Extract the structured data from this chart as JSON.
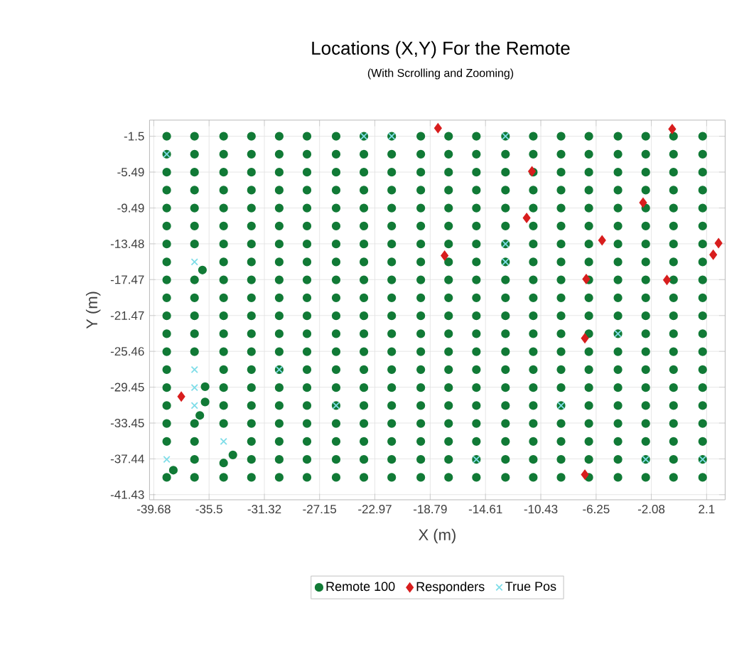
{
  "chart_data": {
    "type": "scatter",
    "title": "Locations (X,Y) For the Remote",
    "subtitle": "(With Scrolling and Zooming)",
    "xlabel": "X (m)",
    "ylabel": "Y (m)",
    "xlim": [
      -40.0,
      3.5
    ],
    "ylim": [
      -42.0,
      0.3
    ],
    "xticks": [
      -39.68,
      -35.5,
      -31.32,
      -27.15,
      -22.97,
      -18.79,
      -14.61,
      -10.43,
      -6.25,
      -2.08,
      2.1
    ],
    "yticks": [
      -1.5,
      -5.49,
      -9.49,
      -13.48,
      -17.47,
      -21.47,
      -25.46,
      -29.45,
      -33.45,
      -37.44,
      -41.43
    ],
    "grid": true,
    "legend": "bottom",
    "series": [
      {
        "name": "Remote 100",
        "color": "#117a36",
        "marker": "circle",
        "x": [
          -38.7,
          -36.6,
          -34.4,
          -32.3,
          -30.2,
          -28.1,
          -25.9,
          -23.8,
          -21.7,
          -19.5,
          -17.4,
          -15.3,
          -13.1,
          -11.0,
          -8.9,
          -6.8,
          -4.6,
          -2.5,
          -0.4,
          1.8,
          -38.7,
          -36.6,
          -34.4,
          -32.3,
          -30.2,
          -28.1,
          -25.9,
          -23.8,
          -21.7,
          -19.5,
          -17.4,
          -15.3,
          -13.1,
          -11.0,
          -8.9,
          -6.8,
          -4.6,
          -2.5,
          -0.4,
          1.8,
          -38.7,
          -36.6,
          -34.4,
          -32.3,
          -30.2,
          -28.1,
          -25.9,
          -23.8,
          -21.7,
          -19.5,
          -17.4,
          -15.3,
          -13.1,
          -11.0,
          -8.9,
          -6.8,
          -4.6,
          -2.5,
          -0.4,
          1.8,
          -38.7,
          -36.6,
          -34.4,
          -32.3,
          -30.2,
          -28.1,
          -25.9,
          -23.8,
          -21.7,
          -19.5,
          -17.4,
          -15.3,
          -13.1,
          -11.0,
          -8.9,
          -6.8,
          -4.6,
          -2.5,
          -0.4,
          1.8,
          -38.7,
          -36.6,
          -34.4,
          -32.3,
          -30.2,
          -28.1,
          -25.9,
          -23.8,
          -21.7,
          -19.5,
          -17.4,
          -15.3,
          -13.1,
          -11.0,
          -8.9,
          -6.8,
          -4.6,
          -2.5,
          -0.4,
          1.8,
          -38.7,
          -36.6,
          -34.4,
          -32.3,
          -30.2,
          -28.1,
          -25.9,
          -23.8,
          -21.7,
          -19.5,
          -17.4,
          -15.3,
          -13.1,
          -11.0,
          -8.9,
          -6.8,
          -4.6,
          -2.5,
          -0.4,
          1.8,
          -38.7,
          -36.6,
          -34.4,
          -32.3,
          -30.2,
          -28.1,
          -25.9,
          -23.8,
          -21.7,
          -19.5,
          -17.4,
          -15.3,
          -13.1,
          -11.0,
          -8.9,
          -6.8,
          -4.6,
          -2.5,
          -0.4,
          1.8,
          -38.7,
          -36.0,
          -34.4,
          -32.3,
          -30.2,
          -28.1,
          -25.9,
          -23.8,
          -21.7,
          -19.5,
          -17.4,
          -15.3,
          -13.1,
          -11.0,
          -8.9,
          -6.8,
          -4.6,
          -2.5,
          -0.4,
          1.8,
          -38.7,
          -36.6,
          -34.4,
          -32.3,
          -30.2,
          -28.1,
          -25.9,
          -23.8,
          -21.7,
          -19.5,
          -17.4,
          -15.3,
          -13.1,
          -11.0,
          -8.9,
          -6.8,
          -4.6,
          -2.5,
          -0.4,
          1.8,
          -38.7,
          -36.6,
          -34.4,
          -32.3,
          -30.2,
          -28.1,
          -25.9,
          -23.8,
          -21.7,
          -19.5,
          -17.4,
          -15.3,
          -13.1,
          -11.0,
          -8.9,
          -6.8,
          -4.6,
          -2.5,
          -0.4,
          1.8,
          -38.7,
          -36.6,
          -34.4,
          -32.3,
          -30.2,
          -28.1,
          -25.9,
          -23.8,
          -21.7,
          -19.5,
          -17.4,
          -15.3,
          -13.1,
          -11.0,
          -8.9,
          -6.8,
          -4.6,
          -2.5,
          -0.4,
          1.8,
          -38.7,
          -36.6,
          -34.4,
          -32.3,
          -30.2,
          -28.1,
          -25.9,
          -23.8,
          -21.7,
          -19.5,
          -17.4,
          -15.3,
          -13.1,
          -11.0,
          -8.9,
          -6.8,
          -4.6,
          -2.5,
          -0.4,
          1.8,
          -38.7,
          -36.6,
          -34.4,
          -32.3,
          -30.2,
          -28.1,
          -25.9,
          -23.8,
          -21.7,
          -19.5,
          -17.4,
          -15.3,
          -13.1,
          -11.0,
          -8.9,
          -6.8,
          -4.6,
          -2.5,
          -0.4,
          1.8,
          -38.7,
          -35.8,
          -34.4,
          -32.3,
          -30.2,
          -28.1,
          -25.9,
          -23.8,
          -21.7,
          -19.5,
          -17.4,
          -15.3,
          -13.1,
          -11.0,
          -8.9,
          -6.8,
          -4.6,
          -2.5,
          -0.4,
          1.8,
          -38.7,
          -35.8,
          -34.4,
          -32.3,
          -30.2,
          -28.1,
          -25.9,
          -23.8,
          -21.7,
          -19.5,
          -17.4,
          -15.3,
          -13.1,
          -11.0,
          -8.9,
          -6.8,
          -4.6,
          -2.5,
          -0.4,
          1.8,
          -38.7,
          -36.2,
          -34.4,
          -32.3,
          -30.2,
          -28.1,
          -25.9,
          -23.8,
          -21.7,
          -19.5,
          -17.4,
          -15.3,
          -13.1,
          -11.0,
          -8.9,
          -6.8,
          -4.6,
          -2.5,
          -0.4,
          1.8,
          -38.7,
          -36.6,
          -34.4,
          -32.3,
          -30.2,
          -28.1,
          -25.9,
          -23.8,
          -21.7,
          -19.5,
          -17.4,
          -15.3,
          -13.1,
          -11.0,
          -8.9,
          -6.8,
          -4.6,
          -2.5,
          -0.4,
          1.8,
          -38.7,
          -36.6,
          -33.7,
          -32.3,
          -30.2,
          -28.1,
          -25.9,
          -23.8,
          -21.7,
          -19.5,
          -17.4,
          -15.3,
          -13.1,
          -11.0,
          -8.9,
          -6.8,
          -4.6,
          -2.5,
          -0.4,
          1.8,
          -38.2,
          -36.6,
          -34.4,
          -32.3,
          -30.2,
          -28.1,
          -25.9,
          -23.8,
          -21.7,
          -19.5,
          -17.4,
          -15.3,
          -13.1,
          -11.0,
          -8.9,
          -6.8,
          -4.6,
          -2.5,
          -0.4,
          1.8,
          -38.7,
          -36.6,
          -34.4,
          -32.3,
          -30.2,
          -28.1,
          -25.9,
          -23.8,
          -21.7,
          -19.5,
          -17.4,
          -15.3,
          -13.1,
          -11.0,
          -8.9,
          -6.8,
          -4.6,
          -2.5,
          -0.4,
          1.8
        ],
        "values": [
          -1.5,
          -1.5,
          -1.5,
          -1.5,
          -1.5,
          -1.5,
          -1.5,
          -1.5,
          -1.5,
          -1.5,
          -1.5,
          -1.5,
          -1.5,
          -1.5,
          -1.5,
          -1.5,
          -1.5,
          -1.5,
          -1.5,
          -1.5,
          -3.5,
          -3.5,
          -3.5,
          -3.5,
          -3.5,
          -3.5,
          -3.5,
          -3.5,
          -3.5,
          -3.5,
          -3.5,
          -3.5,
          -3.5,
          -3.5,
          -3.5,
          -3.5,
          -3.5,
          -3.5,
          -3.5,
          -3.5,
          -5.5,
          -5.5,
          -5.5,
          -5.5,
          -5.5,
          -5.5,
          -5.5,
          -5.5,
          -5.5,
          -5.5,
          -5.5,
          -5.5,
          -5.5,
          -5.5,
          -5.5,
          -5.5,
          -5.5,
          -5.5,
          -5.5,
          -5.5,
          -7.5,
          -7.5,
          -7.5,
          -7.5,
          -7.5,
          -7.5,
          -7.5,
          -7.5,
          -7.5,
          -7.5,
          -7.5,
          -7.5,
          -7.5,
          -7.5,
          -7.5,
          -7.5,
          -7.5,
          -7.5,
          -7.5,
          -7.5,
          -9.5,
          -9.5,
          -9.5,
          -9.5,
          -9.5,
          -9.5,
          -9.5,
          -9.5,
          -9.5,
          -9.5,
          -9.5,
          -9.5,
          -9.5,
          -9.5,
          -9.5,
          -9.5,
          -9.5,
          -9.5,
          -9.5,
          -9.5,
          -11.5,
          -11.5,
          -11.5,
          -11.5,
          -11.5,
          -11.5,
          -11.5,
          -11.5,
          -11.5,
          -11.5,
          -11.5,
          -11.5,
          -11.5,
          -11.5,
          -11.5,
          -11.5,
          -11.5,
          -11.5,
          -11.5,
          -11.5,
          -13.5,
          -13.5,
          -13.5,
          -13.5,
          -13.5,
          -13.5,
          -13.5,
          -13.5,
          -13.5,
          -13.5,
          -13.5,
          -13.5,
          -13.5,
          -13.5,
          -13.5,
          -13.5,
          -13.5,
          -13.5,
          -13.5,
          -13.5,
          -15.5,
          -16.4,
          -15.5,
          -15.5,
          -15.5,
          -15.5,
          -15.5,
          -15.5,
          -15.5,
          -15.5,
          -15.5,
          -15.5,
          -15.5,
          -15.5,
          -15.5,
          -15.5,
          -15.5,
          -15.5,
          -15.5,
          -15.5,
          -17.5,
          -17.5,
          -17.5,
          -17.5,
          -17.5,
          -17.5,
          -17.5,
          -17.5,
          -17.5,
          -17.5,
          -17.5,
          -17.5,
          -17.5,
          -17.5,
          -17.5,
          -17.5,
          -17.5,
          -17.5,
          -17.5,
          -17.5,
          -19.5,
          -19.5,
          -19.5,
          -19.5,
          -19.5,
          -19.5,
          -19.5,
          -19.5,
          -19.5,
          -19.5,
          -19.5,
          -19.5,
          -19.5,
          -19.5,
          -19.5,
          -19.5,
          -19.5,
          -19.5,
          -19.5,
          -19.5,
          -21.5,
          -21.5,
          -21.5,
          -21.5,
          -21.5,
          -21.5,
          -21.5,
          -21.5,
          -21.5,
          -21.5,
          -21.5,
          -21.5,
          -21.5,
          -21.5,
          -21.5,
          -21.5,
          -21.5,
          -21.5,
          -21.5,
          -21.5,
          -23.5,
          -23.5,
          -23.5,
          -23.5,
          -23.5,
          -23.5,
          -23.5,
          -23.5,
          -23.5,
          -23.5,
          -23.5,
          -23.5,
          -23.5,
          -23.5,
          -23.5,
          -23.5,
          -23.5,
          -23.5,
          -23.5,
          -23.5,
          -25.5,
          -25.5,
          -25.5,
          -25.5,
          -25.5,
          -25.5,
          -25.5,
          -25.5,
          -25.5,
          -25.5,
          -25.5,
          -25.5,
          -25.5,
          -25.5,
          -25.5,
          -25.5,
          -25.5,
          -25.5,
          -25.5,
          -25.5,
          -27.5,
          -29.4,
          -27.5,
          -27.5,
          -27.5,
          -27.5,
          -27.5,
          -27.5,
          -27.5,
          -27.5,
          -27.5,
          -27.5,
          -27.5,
          -27.5,
          -27.5,
          -27.5,
          -27.5,
          -27.5,
          -27.5,
          -27.5,
          -29.5,
          -31.1,
          -29.5,
          -29.5,
          -29.5,
          -29.5,
          -29.5,
          -29.5,
          -29.5,
          -29.5,
          -29.5,
          -29.5,
          -29.5,
          -29.5,
          -29.5,
          -29.5,
          -29.5,
          -29.5,
          -29.5,
          -29.5,
          -31.5,
          -32.6,
          -31.5,
          -31.5,
          -31.5,
          -31.5,
          -31.5,
          -31.5,
          -31.5,
          -31.5,
          -31.5,
          -31.5,
          -31.5,
          -31.5,
          -31.5,
          -31.5,
          -31.5,
          -31.5,
          -31.5,
          -31.5,
          -33.5,
          -33.5,
          -33.5,
          -33.5,
          -33.5,
          -33.5,
          -33.5,
          -33.5,
          -33.5,
          -33.5,
          -33.5,
          -33.5,
          -33.5,
          -33.5,
          -33.5,
          -33.5,
          -33.5,
          -33.5,
          -33.5,
          -33.5,
          -35.5,
          -35.5,
          -37.0,
          -35.5,
          -35.5,
          -35.5,
          -35.5,
          -35.5,
          -35.5,
          -35.5,
          -35.5,
          -35.5,
          -35.5,
          -35.5,
          -35.5,
          -35.5,
          -35.5,
          -35.5,
          -35.5,
          -35.5,
          -38.7,
          -37.5,
          -37.9,
          -37.5,
          -37.5,
          -37.5,
          -37.5,
          -37.5,
          -37.5,
          -37.5,
          -37.5,
          -37.5,
          -37.5,
          -37.5,
          -37.5,
          -37.5,
          -37.5,
          -37.5,
          -37.5,
          -37.5,
          -39.5,
          -39.5,
          -39.5,
          -39.5,
          -39.5,
          -39.5,
          -39.5,
          -39.5,
          -39.5,
          -39.5,
          -39.5,
          -39.5,
          -39.5,
          -39.5,
          -39.5,
          -39.5,
          -39.5,
          -39.5,
          -39.5,
          -39.5
        ]
      },
      {
        "name": "Responders",
        "color": "#d81e1e",
        "marker": "diamond",
        "x": [
          -18.2,
          -0.5,
          -11.1,
          -2.7,
          -11.5,
          -5.8,
          3.0,
          2.6,
          -17.7,
          -7.0,
          -0.9,
          -7.1,
          -7.1,
          -37.6
        ],
        "values": [
          -0.6,
          -0.7,
          -5.4,
          -8.9,
          -10.6,
          -13.1,
          -13.4,
          -14.7,
          -14.8,
          -17.4,
          -17.5,
          -24.0,
          -39.2,
          -30.5
        ]
      },
      {
        "name": "True Pos",
        "color": "#7fdde8",
        "marker": "cross",
        "x": [
          -36.6,
          -23.8,
          -38.7,
          -36.6,
          -36.6,
          -36.6,
          -34.4,
          -38.7,
          -25.9,
          -30.2,
          -4.6,
          -8.9,
          -2.5,
          1.8,
          -15.3,
          -13.1,
          -13.1,
          -13.1,
          -21.7
        ],
        "values": [
          -15.5,
          -1.5,
          -3.5,
          -27.5,
          -29.5,
          -31.5,
          -35.5,
          -37.5,
          -31.5,
          -27.5,
          -23.5,
          -31.5,
          -37.5,
          -37.5,
          -37.5,
          -1.5,
          -13.5,
          -15.5,
          -1.5
        ]
      }
    ]
  }
}
